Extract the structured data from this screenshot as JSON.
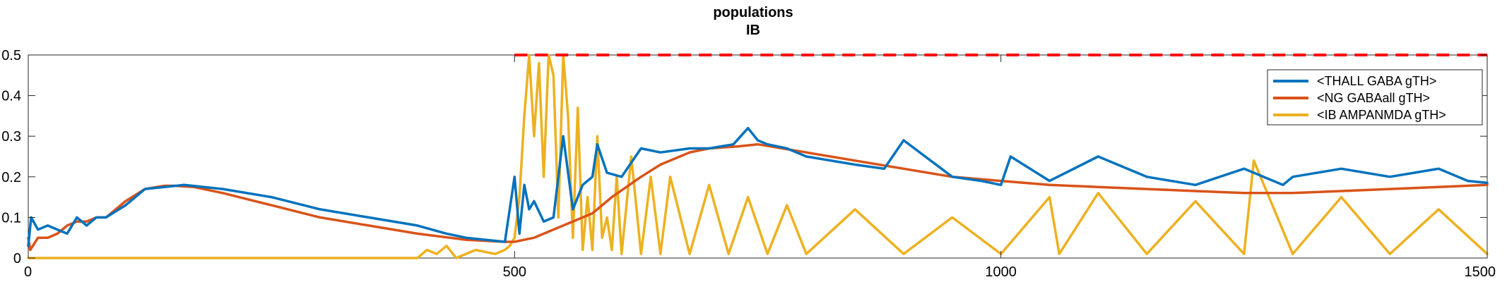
{
  "chart_data": {
    "type": "line",
    "title": "populations",
    "subtitle": "IB",
    "xlabel": "",
    "ylabel": "",
    "xlim": [
      0,
      1500
    ],
    "ylim": [
      0,
      0.5
    ],
    "x_ticks": [
      0,
      500,
      1000,
      1500
    ],
    "y_ticks": [
      0,
      0.1,
      0.2,
      0.3,
      0.4,
      0.5
    ],
    "x_tick_labels": [
      "0",
      "500",
      "1000",
      "1500"
    ],
    "y_tick_labels": [
      "0",
      "0.1",
      "0.2",
      "0.3",
      "0.4",
      "0.5"
    ],
    "grid": false,
    "legend_position": "top-right",
    "reference_line": {
      "y": 0.5,
      "x_range": [
        500,
        1500
      ],
      "color": "#ff0000",
      "style": "dashed"
    },
    "series": [
      {
        "name": "<THALL GABA gTH>",
        "color": "#0072bd",
        "x": [
          0,
          3,
          10,
          20,
          30,
          40,
          50,
          60,
          70,
          80,
          100,
          120,
          140,
          160,
          200,
          250,
          300,
          350,
          400,
          430,
          450,
          470,
          490,
          500,
          505,
          510,
          515,
          520,
          530,
          540,
          550,
          560,
          570,
          580,
          585,
          595,
          610,
          630,
          650,
          680,
          700,
          725,
          740,
          750,
          760,
          780,
          800,
          850,
          880,
          900,
          950,
          980,
          1000,
          1010,
          1050,
          1100,
          1150,
          1200,
          1250,
          1290,
          1300,
          1350,
          1400,
          1450,
          1480,
          1500
        ],
        "y": [
          0.03,
          0.1,
          0.07,
          0.08,
          0.07,
          0.06,
          0.1,
          0.08,
          0.1,
          0.1,
          0.13,
          0.17,
          0.175,
          0.18,
          0.17,
          0.15,
          0.12,
          0.1,
          0.08,
          0.06,
          0.05,
          0.045,
          0.04,
          0.2,
          0.06,
          0.18,
          0.12,
          0.14,
          0.09,
          0.1,
          0.3,
          0.12,
          0.18,
          0.2,
          0.28,
          0.21,
          0.2,
          0.27,
          0.26,
          0.27,
          0.27,
          0.28,
          0.32,
          0.29,
          0.28,
          0.27,
          0.25,
          0.23,
          0.22,
          0.29,
          0.2,
          0.19,
          0.18,
          0.25,
          0.19,
          0.25,
          0.2,
          0.18,
          0.22,
          0.18,
          0.2,
          0.22,
          0.2,
          0.22,
          0.19,
          0.185
        ]
      },
      {
        "name": "<NG GABAall gTH>",
        "color": "#d95319",
        "x": [
          0,
          2,
          10,
          20,
          30,
          40,
          50,
          60,
          70,
          80,
          100,
          120,
          140,
          150,
          170,
          200,
          250,
          300,
          350,
          400,
          450,
          490,
          500,
          520,
          550,
          580,
          600,
          630,
          650,
          680,
          700,
          730,
          750,
          800,
          850,
          900,
          950,
          1000,
          1050,
          1100,
          1150,
          1200,
          1250,
          1300,
          1350,
          1400,
          1450,
          1500
        ],
        "y": [
          0.05,
          0.02,
          0.05,
          0.05,
          0.06,
          0.08,
          0.09,
          0.09,
          0.1,
          0.1,
          0.14,
          0.17,
          0.178,
          0.178,
          0.175,
          0.16,
          0.13,
          0.1,
          0.08,
          0.06,
          0.045,
          0.04,
          0.04,
          0.05,
          0.08,
          0.11,
          0.15,
          0.2,
          0.23,
          0.26,
          0.27,
          0.275,
          0.28,
          0.26,
          0.24,
          0.22,
          0.2,
          0.19,
          0.18,
          0.175,
          0.17,
          0.165,
          0.16,
          0.16,
          0.165,
          0.17,
          0.175,
          0.18
        ]
      },
      {
        "name": "<IB AMPANMDA gTH>",
        "color": "#edb120",
        "x": [
          0,
          50,
          100,
          200,
          300,
          380,
          400,
          410,
          420,
          430,
          440,
          450,
          460,
          470,
          480,
          490,
          495,
          500,
          505,
          510,
          515,
          520,
          525,
          530,
          535,
          540,
          545,
          550,
          555,
          560,
          565,
          570,
          575,
          580,
          585,
          590,
          595,
          600,
          605,
          610,
          620,
          630,
          640,
          650,
          660,
          680,
          700,
          720,
          740,
          760,
          780,
          800,
          850,
          900,
          950,
          1000,
          1050,
          1060,
          1100,
          1150,
          1200,
          1250,
          1260,
          1300,
          1350,
          1400,
          1450,
          1500
        ],
        "y": [
          0.0,
          0.0,
          0.0,
          0.0,
          0.0,
          0.0,
          0.0,
          0.02,
          0.01,
          0.03,
          0.0,
          0.01,
          0.02,
          0.015,
          0.01,
          0.02,
          0.03,
          0.05,
          0.15,
          0.35,
          0.5,
          0.3,
          0.48,
          0.2,
          0.5,
          0.45,
          0.1,
          0.5,
          0.35,
          0.05,
          0.37,
          0.02,
          0.15,
          0.02,
          0.3,
          0.05,
          0.1,
          0.02,
          0.2,
          0.01,
          0.25,
          0.01,
          0.2,
          0.01,
          0.2,
          0.01,
          0.18,
          0.01,
          0.15,
          0.01,
          0.13,
          0.01,
          0.12,
          0.01,
          0.1,
          0.01,
          0.15,
          0.01,
          0.16,
          0.01,
          0.14,
          0.01,
          0.24,
          0.01,
          0.15,
          0.01,
          0.12,
          0.01
        ]
      }
    ]
  }
}
